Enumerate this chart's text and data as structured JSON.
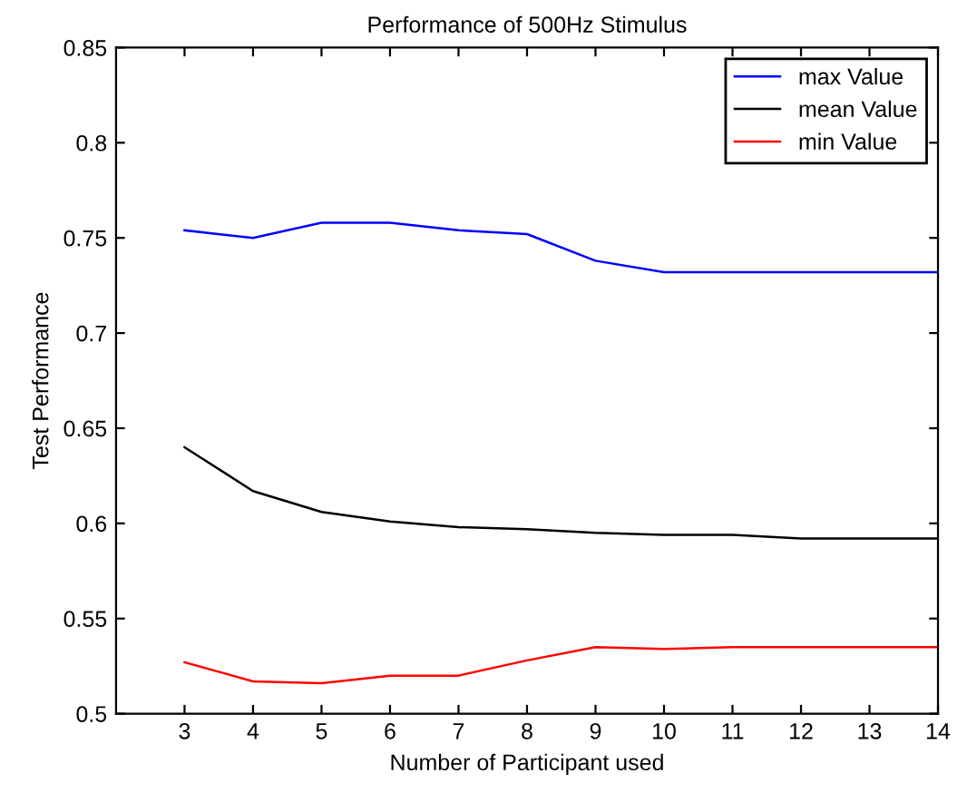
{
  "chart_data": {
    "type": "line",
    "title": "Performance of 500Hz Stimulus",
    "xlabel": "Number of Participant used",
    "ylabel": "Test Performance",
    "x": [
      3,
      4,
      5,
      6,
      7,
      8,
      9,
      10,
      11,
      12,
      13,
      14
    ],
    "series": [
      {
        "name": "max Value",
        "color": "#0000ff",
        "values": [
          0.754,
          0.75,
          0.758,
          0.758,
          0.754,
          0.752,
          0.738,
          0.732,
          0.732,
          0.732,
          0.732,
          0.732
        ]
      },
      {
        "name": "mean Value",
        "color": "#000000",
        "values": [
          0.64,
          0.617,
          0.606,
          0.601,
          0.598,
          0.597,
          0.595,
          0.594,
          0.594,
          0.592,
          0.592,
          0.592
        ]
      },
      {
        "name": "min Value",
        "color": "#ff0000",
        "values": [
          0.527,
          0.517,
          0.516,
          0.52,
          0.52,
          0.528,
          0.535,
          0.534,
          0.535,
          0.535,
          0.535,
          0.535
        ]
      }
    ],
    "xlim": [
      2,
      14
    ],
    "ylim": [
      0.5,
      0.85
    ],
    "xticks": [
      3,
      4,
      5,
      6,
      7,
      8,
      9,
      10,
      11,
      12,
      13,
      14
    ],
    "yticks": [
      0.5,
      0.55,
      0.6,
      0.65,
      0.7,
      0.75,
      0.8,
      0.85
    ],
    "grid": false,
    "legend": "top right",
    "marker": "none",
    "line_style": "solid"
  }
}
